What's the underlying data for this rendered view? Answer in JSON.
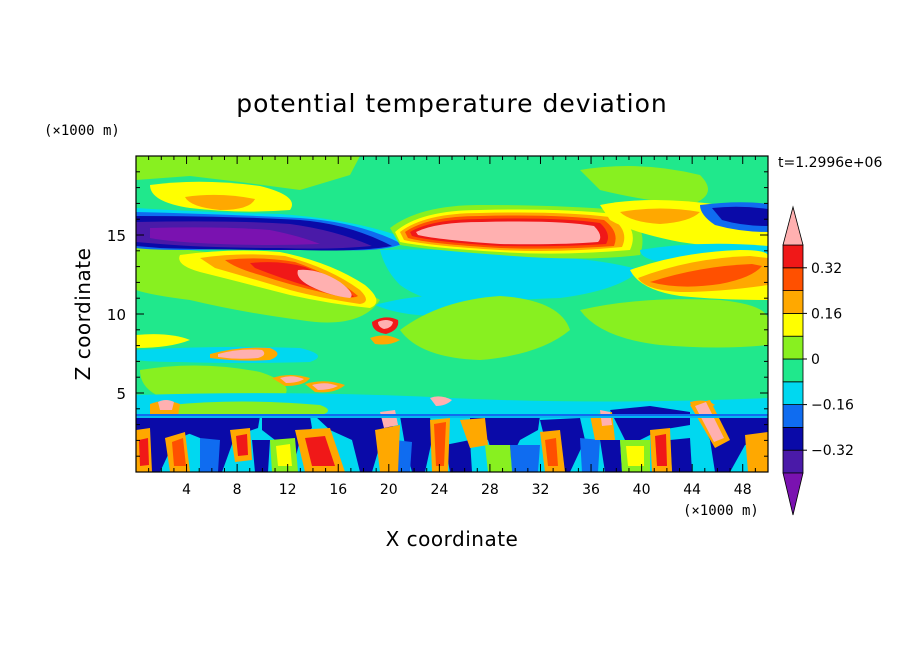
{
  "chart_data": {
    "type": "heatmap",
    "title": "potential temperature deviation",
    "xlabel": "X coordinate",
    "ylabel": "Z coordinate",
    "x_units": "(×1000 m)",
    "y_units": "(×1000 m)",
    "time_label": "t=1.2996e+06",
    "xlim": [
      0,
      50
    ],
    "ylim": [
      0,
      20
    ],
    "x_ticks": [
      4,
      8,
      12,
      16,
      20,
      24,
      28,
      32,
      36,
      40,
      44,
      48
    ],
    "y_ticks": [
      5,
      10,
      15
    ],
    "colorbar": {
      "levels": [
        -0.4,
        -0.32,
        -0.24,
        -0.16,
        -0.08,
        0,
        0.08,
        0.16,
        0.24,
        0.32,
        0.4
      ],
      "tick_labels": [
        "0.32",
        "0.16",
        "0",
        "−0.16",
        "−0.32"
      ],
      "tick_values": [
        0.32,
        0.16,
        0,
        -0.16,
        -0.32
      ],
      "colors_bottom_to_top": [
        "#7a12b0",
        "#4a1aa8",
        "#0a0aa8",
        "#0f6cf0",
        "#00d8f0",
        "#20e88c",
        "#88f020",
        "#ffff00",
        "#ffa800",
        "#ff5000",
        "#f01818",
        "#ffb0b0"
      ],
      "extend": "both"
    },
    "features": [
      {
        "value": -0.4,
        "x": [
          0,
          18
        ],
        "z": [
          14,
          16.5
        ],
        "description": "strong negative layer near tropopause (left)"
      },
      {
        "value": 0.4,
        "x": [
          22,
          36
        ],
        "z": [
          14,
          16.5
        ],
        "description": "strong positive layer near tropopause (middle)"
      },
      {
        "value": 0.4,
        "x": [
          11,
          19
        ],
        "z": [
          11,
          14
        ],
        "description": "positive tilted streak"
      },
      {
        "value": -0.2,
        "x": [
          24,
          38
        ],
        "z": [
          11,
          14
        ],
        "description": "negative region below tropopause"
      },
      {
        "value": 0.3,
        "x": [
          38,
          50
        ],
        "z": [
          11,
          13.5
        ],
        "description": "positive layer right"
      },
      {
        "value": -0.35,
        "x": [
          0,
          50
        ],
        "z": [
          0,
          4
        ],
        "description": "alternating convective cells in boundary layer"
      }
    ]
  }
}
